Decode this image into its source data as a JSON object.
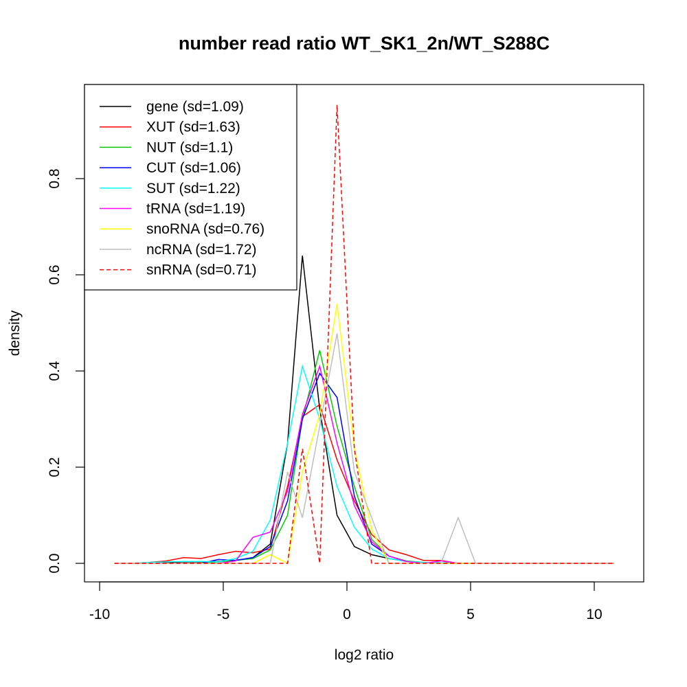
{
  "chart_data": {
    "type": "line",
    "title": "number read ratio WT_SK1_2n/WT_S288C",
    "xlabel": "log2 ratio",
    "ylabel": "density",
    "xlim": [
      -10,
      11
    ],
    "ylim": [
      -0.02,
      0.96
    ],
    "xticks": [
      -10,
      -5,
      0,
      5,
      10
    ],
    "yticks": [
      0.0,
      0.2,
      0.4,
      0.6,
      0.8
    ],
    "xtick_labels": [
      "-10",
      "-5",
      "0",
      "5",
      "10"
    ],
    "ytick_labels": [
      "0.0",
      "0.2",
      "0.4",
      "0.6",
      "0.8"
    ],
    "grid": false,
    "legend_position": "top-left",
    "series": [
      {
        "name": "gene (sd=1.09)",
        "color": "#000000",
        "dash": "solid",
        "points": [
          [
            -9.4,
            0
          ],
          [
            -8.7,
            0
          ],
          [
            -8.0,
            0
          ],
          [
            -7.3,
            0.002
          ],
          [
            -6.6,
            0.003
          ],
          [
            -5.9,
            0.003
          ],
          [
            -5.2,
            0.004
          ],
          [
            -4.5,
            0.006
          ],
          [
            -3.8,
            0.012
          ],
          [
            -3.1,
            0.04
          ],
          [
            -2.4,
            0.25
          ],
          [
            -1.8,
            0.64
          ],
          [
            -1.1,
            0.32
          ],
          [
            -0.4,
            0.1
          ],
          [
            0.3,
            0.035
          ],
          [
            1.0,
            0.018
          ],
          [
            1.7,
            0.01
          ],
          [
            2.4,
            0.004
          ],
          [
            3.1,
            0.002
          ],
          [
            3.8,
            0.001
          ],
          [
            4.5,
            0
          ],
          [
            5.2,
            0
          ],
          [
            5.9,
            0
          ],
          [
            6.6,
            0
          ],
          [
            7.3,
            0
          ],
          [
            8.0,
            0
          ],
          [
            8.7,
            0
          ],
          [
            9.4,
            0
          ],
          [
            10.1,
            0
          ],
          [
            10.8,
            0
          ]
        ]
      },
      {
        "name": "XUT (sd=1.63)",
        "color": "#ff0000",
        "dash": "solid",
        "points": [
          [
            -9.4,
            0
          ],
          [
            -8.7,
            0
          ],
          [
            -8.0,
            0.002
          ],
          [
            -7.3,
            0.005
          ],
          [
            -6.6,
            0.012
          ],
          [
            -5.9,
            0.01
          ],
          [
            -5.2,
            0.018
          ],
          [
            -4.5,
            0.025
          ],
          [
            -3.8,
            0.022
          ],
          [
            -3.1,
            0.03
          ],
          [
            -2.4,
            0.16
          ],
          [
            -1.8,
            0.305
          ],
          [
            -1.1,
            0.33
          ],
          [
            -0.4,
            0.215
          ],
          [
            0.3,
            0.13
          ],
          [
            1.0,
            0.06
          ],
          [
            1.7,
            0.028
          ],
          [
            2.4,
            0.018
          ],
          [
            3.1,
            0.006
          ],
          [
            3.8,
            0.006
          ],
          [
            4.5,
            0
          ],
          [
            5.2,
            0
          ],
          [
            5.9,
            0
          ],
          [
            6.6,
            0
          ],
          [
            7.3,
            0
          ],
          [
            8.0,
            0
          ],
          [
            8.7,
            0
          ],
          [
            9.4,
            0
          ],
          [
            10.1,
            0
          ],
          [
            10.8,
            0
          ]
        ]
      },
      {
        "name": "NUT (sd=1.1)",
        "color": "#00cc00",
        "dash": "solid",
        "points": [
          [
            -9.4,
            0
          ],
          [
            -8.7,
            0
          ],
          [
            -8.0,
            0
          ],
          [
            -7.3,
            0
          ],
          [
            -6.6,
            0
          ],
          [
            -5.9,
            0
          ],
          [
            -5.2,
            0.003
          ],
          [
            -4.5,
            0.006
          ],
          [
            -3.8,
            0.01
          ],
          [
            -3.1,
            0.028
          ],
          [
            -2.4,
            0.1
          ],
          [
            -1.8,
            0.3
          ],
          [
            -1.1,
            0.443
          ],
          [
            -0.4,
            0.285
          ],
          [
            0.3,
            0.16
          ],
          [
            1.0,
            0.05
          ],
          [
            1.7,
            0.015
          ],
          [
            2.4,
            0.005
          ],
          [
            3.1,
            0.002
          ],
          [
            3.8,
            0.001
          ],
          [
            4.5,
            0
          ],
          [
            5.2,
            0
          ],
          [
            5.9,
            0
          ],
          [
            6.6,
            0
          ],
          [
            7.3,
            0
          ],
          [
            8.0,
            0
          ],
          [
            8.7,
            0
          ],
          [
            9.4,
            0
          ],
          [
            10.1,
            0
          ],
          [
            10.8,
            0
          ]
        ]
      },
      {
        "name": "CUT (sd=1.06)",
        "color": "#0000ff",
        "dash": "solid",
        "points": [
          [
            -9.4,
            0
          ],
          [
            -8.7,
            0
          ],
          [
            -8.0,
            0
          ],
          [
            -7.3,
            0
          ],
          [
            -6.6,
            0
          ],
          [
            -5.9,
            0
          ],
          [
            -5.2,
            0.008
          ],
          [
            -4.5,
            0.006
          ],
          [
            -3.8,
            0.012
          ],
          [
            -3.1,
            0.035
          ],
          [
            -2.4,
            0.13
          ],
          [
            -1.8,
            0.3
          ],
          [
            -1.1,
            0.395
          ],
          [
            -0.4,
            0.345
          ],
          [
            0.3,
            0.14
          ],
          [
            1.0,
            0.04
          ],
          [
            1.7,
            0.015
          ],
          [
            2.4,
            0.004
          ],
          [
            3.1,
            0.001
          ],
          [
            3.8,
            0
          ],
          [
            4.5,
            0
          ],
          [
            5.2,
            0
          ],
          [
            5.9,
            0
          ],
          [
            6.6,
            0
          ],
          [
            7.3,
            0
          ],
          [
            8.0,
            0
          ],
          [
            8.7,
            0
          ],
          [
            9.4,
            0
          ],
          [
            10.1,
            0
          ],
          [
            10.8,
            0
          ]
        ]
      },
      {
        "name": "SUT (sd=1.22)",
        "color": "#00ffff",
        "dash": "solid",
        "points": [
          [
            -9.4,
            0
          ],
          [
            -8.7,
            0
          ],
          [
            -8.0,
            0.002
          ],
          [
            -7.3,
            0.003
          ],
          [
            -6.6,
            0.004
          ],
          [
            -5.9,
            0.004
          ],
          [
            -5.2,
            0.003
          ],
          [
            -4.5,
            0.01
          ],
          [
            -3.8,
            0.025
          ],
          [
            -3.1,
            0.09
          ],
          [
            -2.4,
            0.25
          ],
          [
            -1.8,
            0.41
          ],
          [
            -1.1,
            0.3
          ],
          [
            -0.4,
            0.16
          ],
          [
            0.3,
            0.075
          ],
          [
            1.0,
            0.03
          ],
          [
            1.7,
            0.01
          ],
          [
            2.4,
            0.004
          ],
          [
            3.1,
            0.002
          ],
          [
            3.8,
            0.001
          ],
          [
            4.5,
            0
          ],
          [
            5.2,
            0
          ],
          [
            5.9,
            0
          ],
          [
            6.6,
            0
          ],
          [
            7.3,
            0
          ],
          [
            8.0,
            0
          ],
          [
            8.7,
            0
          ],
          [
            9.4,
            0
          ],
          [
            10.1,
            0
          ],
          [
            10.8,
            0
          ]
        ]
      },
      {
        "name": "tRNA (sd=1.19)",
        "color": "#ff00ff",
        "dash": "solid",
        "points": [
          [
            -9.4,
            0
          ],
          [
            -8.7,
            0
          ],
          [
            -8.0,
            0
          ],
          [
            -7.3,
            0
          ],
          [
            -6.6,
            0
          ],
          [
            -5.9,
            0
          ],
          [
            -5.2,
            0
          ],
          [
            -4.5,
            0.005
          ],
          [
            -3.8,
            0.054
          ],
          [
            -3.1,
            0.065
          ],
          [
            -2.4,
            0.15
          ],
          [
            -1.8,
            0.31
          ],
          [
            -1.1,
            0.41
          ],
          [
            -0.4,
            0.25
          ],
          [
            0.3,
            0.12
          ],
          [
            1.0,
            0.045
          ],
          [
            1.7,
            0.015
          ],
          [
            2.4,
            0.004
          ],
          [
            3.1,
            0
          ],
          [
            3.8,
            0.005
          ],
          [
            4.5,
            0
          ],
          [
            5.2,
            0
          ],
          [
            5.9,
            0
          ],
          [
            6.6,
            0
          ],
          [
            7.3,
            0
          ],
          [
            8.0,
            0
          ],
          [
            8.7,
            0
          ],
          [
            9.4,
            0
          ],
          [
            10.1,
            0
          ],
          [
            10.8,
            0
          ]
        ]
      },
      {
        "name": "snoRNA (sd=0.76)",
        "color": "#ffff00",
        "dash": "solid",
        "points": [
          [
            -9.4,
            0
          ],
          [
            -8.7,
            0
          ],
          [
            -8.0,
            0
          ],
          [
            -7.3,
            0
          ],
          [
            -6.6,
            0
          ],
          [
            -5.9,
            0
          ],
          [
            -5.2,
            0
          ],
          [
            -4.5,
            0
          ],
          [
            -3.8,
            0
          ],
          [
            -3.1,
            0.018
          ],
          [
            -2.4,
            0
          ],
          [
            -1.8,
            0.19
          ],
          [
            -1.1,
            0.31
          ],
          [
            -0.4,
            0.54
          ],
          [
            0.3,
            0.24
          ],
          [
            1.0,
            0.07
          ],
          [
            1.7,
            0
          ],
          [
            2.4,
            0
          ],
          [
            3.1,
            0
          ],
          [
            3.8,
            0
          ],
          [
            4.5,
            0
          ],
          [
            5.2,
            0
          ],
          [
            5.9,
            0
          ],
          [
            6.6,
            0
          ],
          [
            7.3,
            0
          ],
          [
            8.0,
            0
          ],
          [
            8.7,
            0
          ],
          [
            9.4,
            0
          ],
          [
            10.1,
            0
          ],
          [
            10.8,
            0
          ]
        ]
      },
      {
        "name": "ncRNA (sd=1.72)",
        "color": "#bebebe",
        "dash": "solid",
        "points": [
          [
            -9.4,
            0
          ],
          [
            -8.7,
            0
          ],
          [
            -8.0,
            0
          ],
          [
            -7.3,
            0
          ],
          [
            -6.6,
            0
          ],
          [
            -5.9,
            0
          ],
          [
            -5.2,
            0
          ],
          [
            -4.5,
            0
          ],
          [
            -3.8,
            0
          ],
          [
            -3.1,
            0
          ],
          [
            -2.4,
            0.19
          ],
          [
            -1.8,
            0.095
          ],
          [
            -1.1,
            0.285
          ],
          [
            -0.4,
            0.478
          ],
          [
            0.3,
            0.19
          ],
          [
            1.0,
            0.095
          ],
          [
            1.7,
            0
          ],
          [
            2.4,
            0
          ],
          [
            3.1,
            0
          ],
          [
            3.8,
            0
          ],
          [
            4.5,
            0.095
          ],
          [
            5.2,
            0
          ],
          [
            5.9,
            0
          ],
          [
            6.6,
            0
          ],
          [
            7.3,
            0
          ],
          [
            8.0,
            0
          ],
          [
            8.7,
            0
          ],
          [
            9.4,
            0
          ],
          [
            10.1,
            0
          ],
          [
            10.8,
            0
          ]
        ]
      },
      {
        "name": "snRNA (sd=0.71)",
        "color": "#ff0000",
        "dash": "dashed",
        "points": [
          [
            -9.4,
            0
          ],
          [
            -8.7,
            0
          ],
          [
            -8.0,
            0
          ],
          [
            -7.3,
            0
          ],
          [
            -6.6,
            0
          ],
          [
            -5.9,
            0
          ],
          [
            -5.2,
            0
          ],
          [
            -4.5,
            0
          ],
          [
            -3.8,
            0
          ],
          [
            -3.1,
            0
          ],
          [
            -2.4,
            0
          ],
          [
            -1.8,
            0.238
          ],
          [
            -1.1,
            0
          ],
          [
            -0.4,
            0.953
          ],
          [
            0.3,
            0.238
          ],
          [
            1.0,
            0
          ],
          [
            1.7,
            0
          ],
          [
            2.4,
            0
          ],
          [
            3.1,
            0
          ],
          [
            3.8,
            0
          ],
          [
            4.5,
            0
          ],
          [
            5.2,
            0
          ],
          [
            5.9,
            0
          ],
          [
            6.6,
            0
          ],
          [
            7.3,
            0
          ],
          [
            8.0,
            0
          ],
          [
            8.7,
            0
          ],
          [
            9.4,
            0
          ],
          [
            10.1,
            0
          ],
          [
            10.8,
            0
          ]
        ]
      }
    ]
  }
}
